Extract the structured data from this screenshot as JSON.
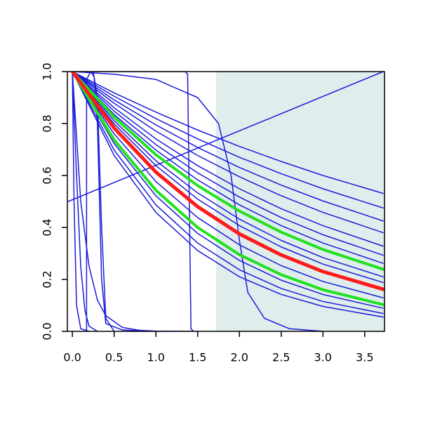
{
  "chart_data": {
    "type": "line",
    "xlim": [
      -0.06,
      3.737
    ],
    "ylim": [
      0,
      1.0
    ],
    "xticks": [
      {
        "value": 0,
        "label": "0.0"
      },
      0.5,
      {
        "value": 1,
        "label": "1.0"
      },
      1.5,
      {
        "value": 2,
        "label": "2.0"
      },
      2.5,
      {
        "value": 3,
        "label": "3.0"
      },
      3.5
    ],
    "yticks": [
      {
        "value": 0,
        "label": "0.0"
      },
      0.2,
      0.4,
      0.6,
      0.8,
      {
        "value": 1,
        "label": "1.0"
      }
    ],
    "shaded_region": {
      "xlim": [
        1.72,
        3.737
      ],
      "color": "#e0eded"
    },
    "series": [
      {
        "color": "#1a1adb",
        "width": 1.5,
        "x": [
          -0.05,
          3.72
        ],
        "values": [
          0.5,
          1.0
        ]
      },
      {
        "color": "#1a1adb",
        "width": 1.5,
        "x": [
          0,
          0.02,
          0.05,
          0.1,
          0.2
        ],
        "values": [
          1,
          0.5,
          0.1,
          0.01,
          0
        ]
      },
      {
        "color": "#1a1adb",
        "width": 1.5,
        "x": [
          0,
          0.05,
          0.1,
          0.15,
          0.2,
          0.3
        ],
        "values": [
          1,
          0.6,
          0.25,
          0.08,
          0.02,
          0
        ]
      },
      {
        "color": "#1a1adb",
        "width": 1.5,
        "x": [
          0,
          0.1,
          0.2,
          0.3,
          0.4,
          0.6,
          0.8,
          1.0,
          1.5
        ],
        "values": [
          1,
          0.5,
          0.25,
          0.12,
          0.06,
          0.015,
          0.004,
          0.001,
          0
        ]
      },
      {
        "color": "#1a1adb",
        "width": 1.5,
        "x": [
          0.17,
          0.17,
          0.22,
          0.26,
          0.3,
          0.35,
          0.4,
          0.6,
          1.0
        ],
        "values": [
          0,
          0.97,
          1.0,
          0.98,
          0.8,
          0.2,
          0.03,
          0.005,
          0
        ]
      },
      {
        "color": "#1a1adb",
        "width": 1.5,
        "x": [
          0,
          0.25,
          0.3,
          0.35,
          0.4,
          0.5
        ],
        "values": [
          1,
          1,
          0.9,
          0.4,
          0.05,
          0
        ]
      },
      {
        "color": "#1a1adb",
        "width": 1.5,
        "x": [
          0,
          0.3,
          1.35,
          1.38,
          1.4,
          1.42,
          1.45
        ],
        "values": [
          1,
          1,
          1,
          0.99,
          0.5,
          0.01,
          0
        ]
      },
      {
        "color": "#1a1adb",
        "width": 1.5,
        "x": [
          0,
          0.5,
          1,
          1.5,
          1.75,
          1.9,
          2,
          2.1,
          2.3,
          2.6,
          3
        ],
        "values": [
          1,
          0.99,
          0.97,
          0.9,
          0.8,
          0.6,
          0.35,
          0.15,
          0.05,
          0.01,
          0
        ]
      },
      {
        "color": "#1a1adb",
        "width": 1.5,
        "x": [
          0,
          0.5,
          1,
          1.5,
          2,
          2.5,
          3,
          3.72
        ],
        "values": [
          1,
          0.918,
          0.844,
          0.775,
          0.712,
          0.654,
          0.6,
          0.531
        ]
      },
      {
        "color": "#1a1adb",
        "width": 1.5,
        "x": [
          0,
          0.5,
          1,
          1.5,
          2,
          2.5,
          3,
          3.72
        ],
        "values": [
          1,
          0.905,
          0.819,
          0.741,
          0.67,
          0.607,
          0.549,
          0.475
        ]
      },
      {
        "color": "#1a1adb",
        "width": 1.5,
        "x": [
          0,
          0.5,
          1,
          1.5,
          2,
          2.5,
          3,
          3.72
        ],
        "values": [
          1,
          0.891,
          0.795,
          0.708,
          0.631,
          0.563,
          0.502,
          0.425
        ]
      },
      {
        "color": "#1a1adb",
        "width": 1.5,
        "x": [
          0,
          0.5,
          1,
          1.5,
          2,
          2.5,
          3,
          3.72
        ],
        "values": [
          1,
          0.878,
          0.771,
          0.677,
          0.595,
          0.522,
          0.458,
          0.38
        ]
      },
      {
        "color": "#1a1adb",
        "width": 1.5,
        "x": [
          0,
          0.5,
          1,
          1.5,
          2,
          2.5,
          3,
          3.72
        ],
        "values": [
          1,
          0.861,
          0.741,
          0.638,
          0.549,
          0.472,
          0.407,
          0.328
        ]
      },
      {
        "color": "#1a1adb",
        "width": 1.5,
        "x": [
          0,
          0.5,
          1,
          1.5,
          2,
          2.5,
          3,
          3.72
        ],
        "values": [
          1,
          0.848,
          0.719,
          0.61,
          0.517,
          0.438,
          0.372,
          0.293
        ]
      },
      {
        "color": "#1a1adb",
        "width": 1.5,
        "x": [
          0,
          0.5,
          1,
          1.5,
          2,
          2.5,
          3,
          3.72
        ],
        "values": [
          1,
          0.835,
          0.698,
          0.583,
          0.487,
          0.407,
          0.34,
          0.262
        ]
      },
      {
        "color": "#1a1adb",
        "width": 1.5,
        "x": [
          0,
          0.5,
          1,
          1.5,
          2,
          2.5,
          3,
          3.72
        ],
        "values": [
          1,
          0.811,
          0.657,
          0.533,
          0.432,
          0.35,
          0.284,
          0.21
        ]
      },
      {
        "color": "#1a1adb",
        "width": 1.5,
        "x": [
          0,
          0.5,
          1,
          1.5,
          2,
          2.5,
          3,
          3.72
        ],
        "values": [
          1,
          0.799,
          0.638,
          0.509,
          0.407,
          0.325,
          0.259,
          0.188
        ]
      },
      {
        "color": "#1a1adb",
        "width": 1.5,
        "x": [
          0,
          0.5,
          1,
          1.5,
          2,
          2.5,
          3,
          3.72
        ],
        "values": [
          1,
          0.76,
          0.577,
          0.438,
          0.333,
          0.253,
          0.192,
          0.129
        ]
      },
      {
        "color": "#1a1adb",
        "width": 1.5,
        "x": [
          0,
          0.5,
          1,
          1.5,
          2,
          2.5,
          3,
          3.72
        ],
        "values": [
          1,
          0.723,
          0.522,
          0.377,
          0.273,
          0.197,
          0.142,
          0.089
        ]
      },
      {
        "color": "#1a1adb",
        "width": 1.5,
        "x": [
          0,
          0.5,
          1,
          1.5,
          2,
          2.5,
          3,
          3.72
        ],
        "values": [
          1,
          0.698,
          0.487,
          0.34,
          0.237,
          0.165,
          0.115,
          0.069
        ]
      },
      {
        "color": "#1a1adb",
        "width": 1.5,
        "x": [
          0,
          0.5,
          1,
          1.5,
          2,
          2.5,
          3,
          3.72
        ],
        "values": [
          1,
          0.677,
          0.458,
          0.311,
          0.21,
          0.142,
          0.096,
          0.055
        ]
      },
      {
        "color": "#22e022",
        "width": 4,
        "x": [
          0,
          0.5,
          1,
          1.5,
          2,
          2.5,
          3,
          3.72
        ],
        "values": [
          1,
          0.825,
          0.68,
          0.561,
          0.463,
          0.382,
          0.315,
          0.239
        ]
      },
      {
        "color": "#22e022",
        "width": 4,
        "x": [
          0,
          0.5,
          1,
          1.5,
          2,
          2.5,
          3,
          3.72
        ],
        "values": [
          1,
          0.737,
          0.543,
          0.4,
          0.295,
          0.218,
          0.16,
          0.103
        ]
      },
      {
        "color": "#ff1a1a",
        "width": 5,
        "x": [
          0,
          0.5,
          1,
          1.5,
          2,
          2.5,
          3,
          3.72
        ],
        "values": [
          1,
          0.783,
          0.613,
          0.48,
          0.375,
          0.294,
          0.23,
          0.162
        ]
      }
    ]
  }
}
